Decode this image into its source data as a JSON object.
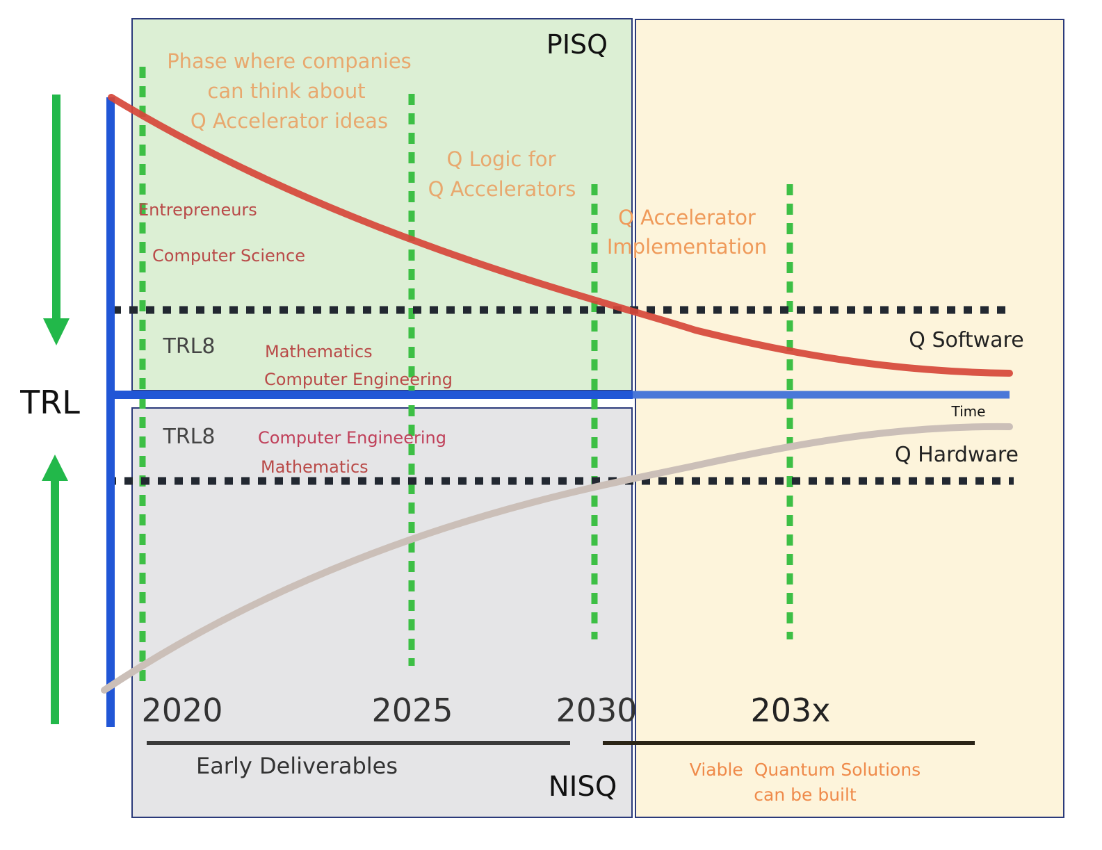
{
  "labels": {
    "pisq": "PISQ",
    "nisq": "NISQ",
    "trl": "TRL",
    "time": "Time",
    "q_software": "Q Software",
    "q_hardware": "Q Hardware",
    "trl8_top": "TRL8",
    "trl8_bottom": "TRL8"
  },
  "phases": {
    "phase1": [
      "Phase where companies",
      "can think about",
      "Q Accelerator ideas"
    ],
    "phase2": [
      "Q Logic for",
      "Q Accelerators"
    ],
    "phase3": [
      "Q Accelerator",
      "Implementation"
    ]
  },
  "disciplines": {
    "entrepreneurs": "Entrepreneurs",
    "computer_science": "Computer Science",
    "mathematics_top": "Mathematics",
    "computer_engineering_top": "Computer Engineering",
    "computer_engineering_bottom": "Computer Engineering",
    "mathematics_bottom": "Mathematics"
  },
  "years": {
    "y2020": "2020",
    "y2025": "2025",
    "y2030": "2030",
    "y203x": "203x"
  },
  "footer": {
    "early_deliverables": "Early Deliverables",
    "viable": [
      "Viable  Quantum Solutions",
      "can be built"
    ]
  },
  "colors": {
    "pisq_fill": "#dcefd4",
    "nisq_fill": "#e5e5e7",
    "future_fill": "#fdf4db",
    "frame": "#2b3a7a",
    "axis_blue": "#2156d6",
    "arrow_green": "#22b84a",
    "dash_green": "#3dbf45",
    "dots_dark": "#222831",
    "software_curve": "#d6473a",
    "hardware_curve": "#cbbfb8",
    "phase_text": "#e8a86e",
    "discipline_text": "#b94a48",
    "viable_text": "#ef8a4a",
    "dark_text": "#111111",
    "gray_text": "#444444"
  }
}
